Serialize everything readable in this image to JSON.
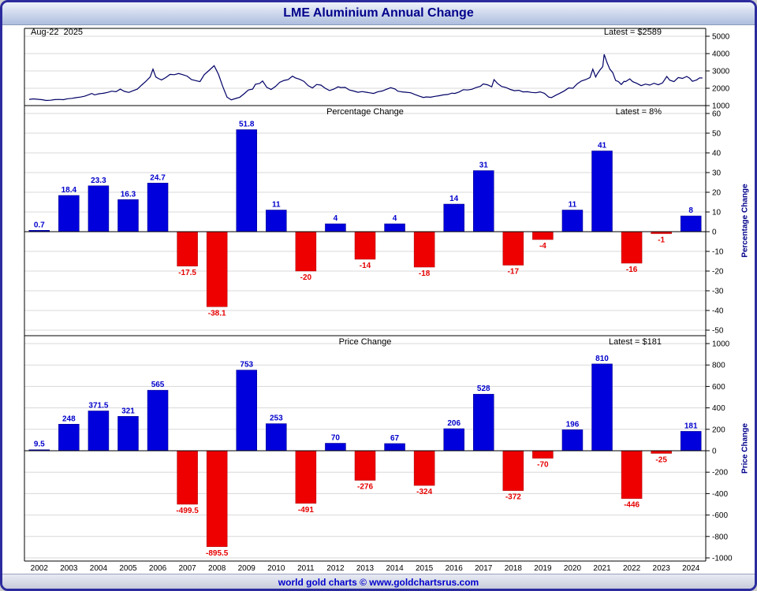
{
  "header": {
    "title": "LME Aluminium Annual Change"
  },
  "footer": {
    "text": "world gold charts © www.goldchartsrus.com"
  },
  "colors": {
    "positive": "#0000dd",
    "negative": "#ee0000",
    "label_positive": "#0000cc",
    "label_negative": "#e60000",
    "line": "#000066",
    "grid": "#d8d8d8",
    "navy": "#00008b"
  },
  "chart_data": [
    {
      "type": "line",
      "name": "price-history",
      "date_label": "Aug-22  2025",
      "latest_label": "Latest = $2589",
      "latest_value": 2589,
      "ylim": [
        1000,
        5000
      ],
      "yticks": [
        5000,
        4000,
        3000,
        2000,
        1000
      ],
      "series": [
        {
          "name": "LME Aluminium Price",
          "points": [
            [
              2002.0,
              1360
            ],
            [
              2002.15,
              1385
            ],
            [
              2002.3,
              1365
            ],
            [
              2002.45,
              1340
            ],
            [
              2002.6,
              1295
            ],
            [
              2002.75,
              1310
            ],
            [
              2002.9,
              1345
            ],
            [
              2003.05,
              1355
            ],
            [
              2003.2,
              1340
            ],
            [
              2003.35,
              1395
            ],
            [
              2003.5,
              1420
            ],
            [
              2003.65,
              1460
            ],
            [
              2003.8,
              1490
            ],
            [
              2003.95,
              1540
            ],
            [
              2004.1,
              1630
            ],
            [
              2004.2,
              1700
            ],
            [
              2004.3,
              1620
            ],
            [
              2004.45,
              1680
            ],
            [
              2004.6,
              1710
            ],
            [
              2004.75,
              1760
            ],
            [
              2004.9,
              1830
            ],
            [
              2005.05,
              1800
            ],
            [
              2005.2,
              1950
            ],
            [
              2005.35,
              1820
            ],
            [
              2005.5,
              1760
            ],
            [
              2005.65,
              1860
            ],
            [
              2005.8,
              1950
            ],
            [
              2005.95,
              2180
            ],
            [
              2006.1,
              2400
            ],
            [
              2006.25,
              2650
            ],
            [
              2006.35,
              3100
            ],
            [
              2006.45,
              2650
            ],
            [
              2006.55,
              2550
            ],
            [
              2006.65,
              2480
            ],
            [
              2006.8,
              2620
            ],
            [
              2006.95,
              2800
            ],
            [
              2007.1,
              2780
            ],
            [
              2007.25,
              2850
            ],
            [
              2007.4,
              2780
            ],
            [
              2007.55,
              2700
            ],
            [
              2007.7,
              2500
            ],
            [
              2007.85,
              2440
            ],
            [
              2008.0,
              2380
            ],
            [
              2008.15,
              2780
            ],
            [
              2008.3,
              3000
            ],
            [
              2008.5,
              3300
            ],
            [
              2008.65,
              2800
            ],
            [
              2008.8,
              2100
            ],
            [
              2008.95,
              1490
            ],
            [
              2009.1,
              1330
            ],
            [
              2009.25,
              1410
            ],
            [
              2009.4,
              1480
            ],
            [
              2009.55,
              1680
            ],
            [
              2009.7,
              1900
            ],
            [
              2009.85,
              1950
            ],
            [
              2009.95,
              2230
            ],
            [
              2010.1,
              2280
            ],
            [
              2010.2,
              2420
            ],
            [
              2010.35,
              2050
            ],
            [
              2010.5,
              1930
            ],
            [
              2010.65,
              2100
            ],
            [
              2010.8,
              2340
            ],
            [
              2010.95,
              2450
            ],
            [
              2011.1,
              2500
            ],
            [
              2011.25,
              2700
            ],
            [
              2011.35,
              2600
            ],
            [
              2011.5,
              2520
            ],
            [
              2011.65,
              2400
            ],
            [
              2011.8,
              2150
            ],
            [
              2011.95,
              2020
            ],
            [
              2012.1,
              2220
            ],
            [
              2012.25,
              2180
            ],
            [
              2012.4,
              2000
            ],
            [
              2012.55,
              1870
            ],
            [
              2012.7,
              1950
            ],
            [
              2012.85,
              2080
            ],
            [
              2012.95,
              2040
            ],
            [
              2013.1,
              2050
            ],
            [
              2013.25,
              1900
            ],
            [
              2013.4,
              1840
            ],
            [
              2013.55,
              1770
            ],
            [
              2013.7,
              1810
            ],
            [
              2013.85,
              1770
            ],
            [
              2013.95,
              1740
            ],
            [
              2014.1,
              1700
            ],
            [
              2014.25,
              1800
            ],
            [
              2014.4,
              1840
            ],
            [
              2014.55,
              1940
            ],
            [
              2014.7,
              2030
            ],
            [
              2014.85,
              1960
            ],
            [
              2014.95,
              1830
            ],
            [
              2015.1,
              1790
            ],
            [
              2015.25,
              1770
            ],
            [
              2015.4,
              1740
            ],
            [
              2015.55,
              1640
            ],
            [
              2015.7,
              1550
            ],
            [
              2015.85,
              1470
            ],
            [
              2015.95,
              1500
            ],
            [
              2016.1,
              1480
            ],
            [
              2016.25,
              1530
            ],
            [
              2016.4,
              1570
            ],
            [
              2016.55,
              1620
            ],
            [
              2016.7,
              1640
            ],
            [
              2016.85,
              1720
            ],
            [
              2016.95,
              1700
            ],
            [
              2017.1,
              1780
            ],
            [
              2017.25,
              1920
            ],
            [
              2017.4,
              1900
            ],
            [
              2017.55,
              1940
            ],
            [
              2017.7,
              2040
            ],
            [
              2017.85,
              2110
            ],
            [
              2017.95,
              2250
            ],
            [
              2018.1,
              2200
            ],
            [
              2018.25,
              2080
            ],
            [
              2018.33,
              2500
            ],
            [
              2018.45,
              2280
            ],
            [
              2018.6,
              2100
            ],
            [
              2018.75,
              2040
            ],
            [
              2018.9,
              1930
            ],
            [
              2019.05,
              1860
            ],
            [
              2019.2,
              1880
            ],
            [
              2019.35,
              1790
            ],
            [
              2019.5,
              1800
            ],
            [
              2019.65,
              1760
            ],
            [
              2019.8,
              1740
            ],
            [
              2019.95,
              1790
            ],
            [
              2020.1,
              1710
            ],
            [
              2020.25,
              1490
            ],
            [
              2020.35,
              1460
            ],
            [
              2020.5,
              1600
            ],
            [
              2020.65,
              1720
            ],
            [
              2020.8,
              1850
            ],
            [
              2020.95,
              2020
            ],
            [
              2021.1,
              2000
            ],
            [
              2021.25,
              2250
            ],
            [
              2021.4,
              2420
            ],
            [
              2021.55,
              2500
            ],
            [
              2021.7,
              2620
            ],
            [
              2021.8,
              3100
            ],
            [
              2021.9,
              2650
            ],
            [
              2021.95,
              2810
            ],
            [
              2022.05,
              3050
            ],
            [
              2022.15,
              3250
            ],
            [
              2022.2,
              3960
            ],
            [
              2022.3,
              3480
            ],
            [
              2022.4,
              3100
            ],
            [
              2022.5,
              2900
            ],
            [
              2022.6,
              2450
            ],
            [
              2022.7,
              2380
            ],
            [
              2022.8,
              2220
            ],
            [
              2022.9,
              2400
            ],
            [
              2022.95,
              2380
            ],
            [
              2023.1,
              2540
            ],
            [
              2023.2,
              2380
            ],
            [
              2023.35,
              2280
            ],
            [
              2023.5,
              2150
            ],
            [
              2023.65,
              2240
            ],
            [
              2023.8,
              2180
            ],
            [
              2023.95,
              2290
            ],
            [
              2024.1,
              2200
            ],
            [
              2024.25,
              2310
            ],
            [
              2024.4,
              2680
            ],
            [
              2024.5,
              2470
            ],
            [
              2024.65,
              2380
            ],
            [
              2024.8,
              2620
            ],
            [
              2024.95,
              2570
            ],
            [
              2025.1,
              2680
            ],
            [
              2025.2,
              2580
            ],
            [
              2025.3,
              2400
            ],
            [
              2025.45,
              2480
            ],
            [
              2025.55,
              2600
            ],
            [
              2025.65,
              2589
            ]
          ]
        }
      ]
    },
    {
      "type": "bar",
      "title": "Percentage Change",
      "latest_label": "Latest = 8%",
      "ylabel": "Percentage Change",
      "ylim": [
        -50,
        60
      ],
      "yticks": [
        60,
        50,
        40,
        30,
        20,
        10,
        0,
        -10,
        -20,
        -30,
        -40,
        -50
      ],
      "categories": [
        "2002",
        "2003",
        "2004",
        "2005",
        "2006",
        "2007",
        "2008",
        "2009",
        "2010",
        "2011",
        "2012",
        "2013",
        "2014",
        "2015",
        "2016",
        "2017",
        "2018",
        "2019",
        "2020",
        "2021",
        "2022",
        "2023",
        "2024"
      ],
      "values": [
        0.7,
        18.4,
        23.3,
        16.3,
        24.7,
        -17.5,
        -38.1,
        51.8,
        11,
        -20,
        4,
        -14,
        4,
        -18,
        14,
        31,
        -17,
        -4,
        11,
        41,
        -16,
        -1,
        8
      ]
    },
    {
      "type": "bar",
      "title": "Price Change",
      "latest_label": "Latest = $181",
      "ylabel": "Price Change",
      "ylim": [
        -1000,
        1000
      ],
      "yticks": [
        1000,
        800,
        600,
        400,
        200,
        0,
        -200,
        -400,
        -600,
        -800,
        -1000
      ],
      "categories": [
        "2002",
        "2003",
        "2004",
        "2005",
        "2006",
        "2007",
        "2008",
        "2009",
        "2010",
        "2011",
        "2012",
        "2013",
        "2014",
        "2015",
        "2016",
        "2017",
        "2018",
        "2019",
        "2020",
        "2021",
        "2022",
        "2023",
        "2024"
      ],
      "values": [
        9.5,
        248,
        371.5,
        321,
        565,
        -499.5,
        -895.5,
        753,
        253,
        -491,
        70,
        -276,
        67,
        -324,
        206,
        528,
        -372,
        -70,
        196,
        810,
        -446,
        -25,
        181
      ]
    }
  ]
}
